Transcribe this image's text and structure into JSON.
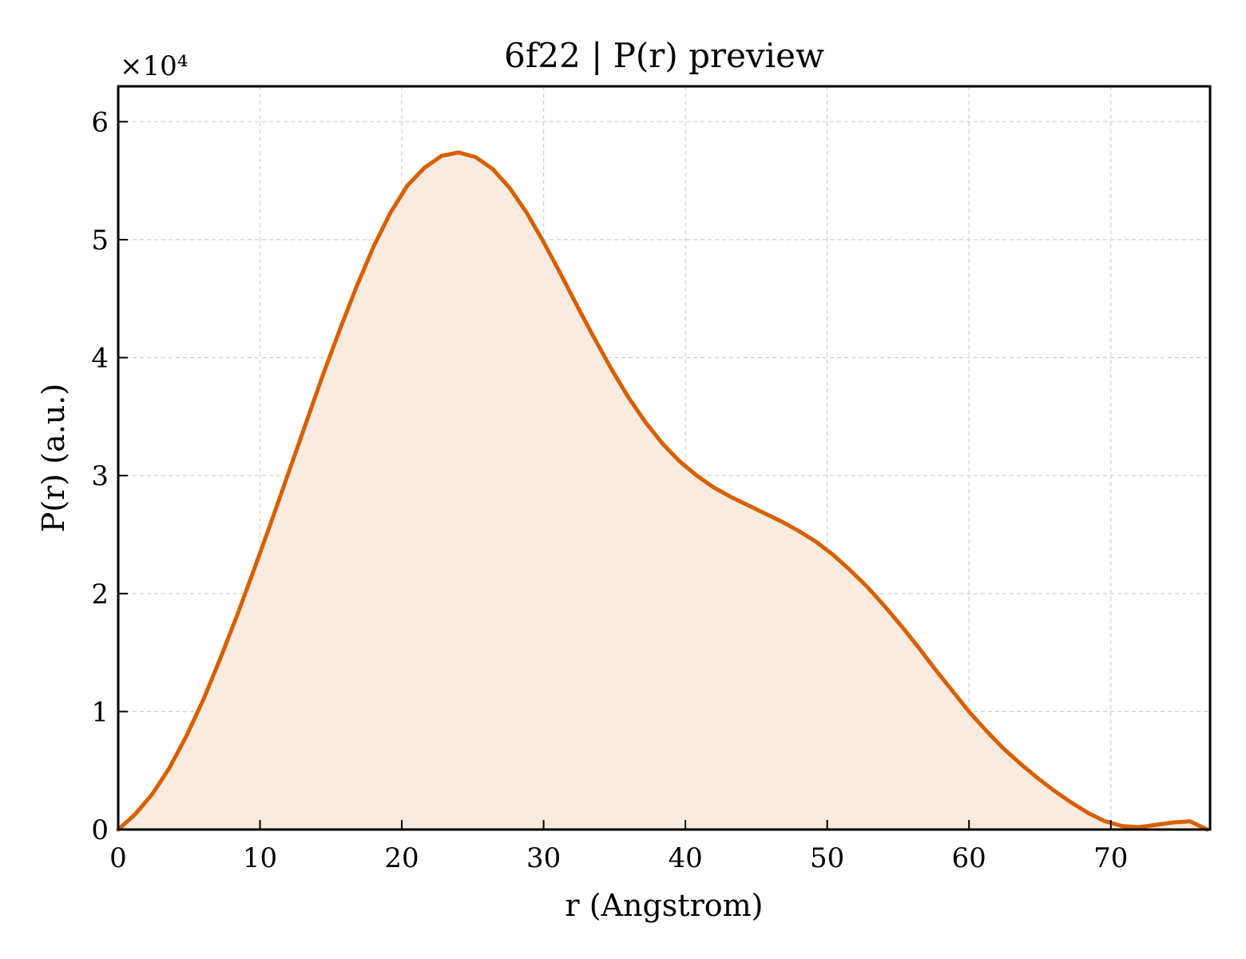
{
  "chart_data": {
    "type": "area",
    "title": "6f22 | P(r) preview",
    "xlabel": "r (Angstrom)",
    "ylabel": "P(r) (a.u.)",
    "y_multiplier_label": "×10⁴",
    "xlim": [
      0,
      77
    ],
    "ylim": [
      0,
      63000
    ],
    "x_ticks": [
      0,
      10,
      20,
      30,
      40,
      50,
      60,
      70
    ],
    "y_ticks": [
      0,
      10000,
      20000,
      30000,
      40000,
      50000,
      60000
    ],
    "x_tick_labels": [
      "0",
      "10",
      "20",
      "30",
      "40",
      "50",
      "60",
      "70"
    ],
    "y_tick_labels": [
      "0",
      "1",
      "2",
      "3",
      "4",
      "5",
      "6"
    ],
    "grid": true,
    "line_color": "#d95f02",
    "fill_color": "#f9ebe0",
    "series": [
      {
        "x": [
          0,
          1.2,
          2.4,
          3.6,
          4.8,
          6.0,
          7.2,
          8.4,
          9.6,
          10.8,
          12.0,
          13.2,
          14.4,
          15.6,
          16.8,
          18.0,
          19.2,
          20.4,
          21.6,
          22.8,
          24.0,
          25.2,
          26.4,
          27.6,
          28.8,
          30.0,
          31.2,
          32.4,
          33.6,
          34.8,
          36.0,
          37.2,
          38.4,
          39.6,
          40.8,
          42.0,
          43.2,
          44.4,
          45.6,
          46.8,
          48.0,
          49.2,
          50.4,
          51.6,
          52.8,
          54.0,
          55.2,
          56.4,
          57.6,
          58.8,
          60.0,
          61.2,
          62.4,
          63.6,
          64.8,
          66.0,
          67.2,
          68.4,
          69.6,
          70.8,
          72.0,
          73.2,
          74.4,
          75.6,
          76.8
        ],
        "y": [
          0,
          1300,
          3000,
          5200,
          7900,
          11000,
          14500,
          18200,
          22100,
          26100,
          30200,
          34300,
          38400,
          42300,
          46000,
          49400,
          52300,
          54600,
          56100,
          57100,
          57400,
          57000,
          56000,
          54400,
          52300,
          49800,
          47100,
          44300,
          41600,
          39000,
          36600,
          34500,
          32700,
          31200,
          30000,
          29000,
          28200,
          27500,
          26800,
          26100,
          25300,
          24400,
          23300,
          22000,
          20600,
          19000,
          17300,
          15500,
          13600,
          11800,
          10000,
          8400,
          6900,
          5600,
          4400,
          3300,
          2300,
          1400,
          700,
          300,
          200,
          400,
          600,
          700,
          0
        ]
      }
    ]
  }
}
